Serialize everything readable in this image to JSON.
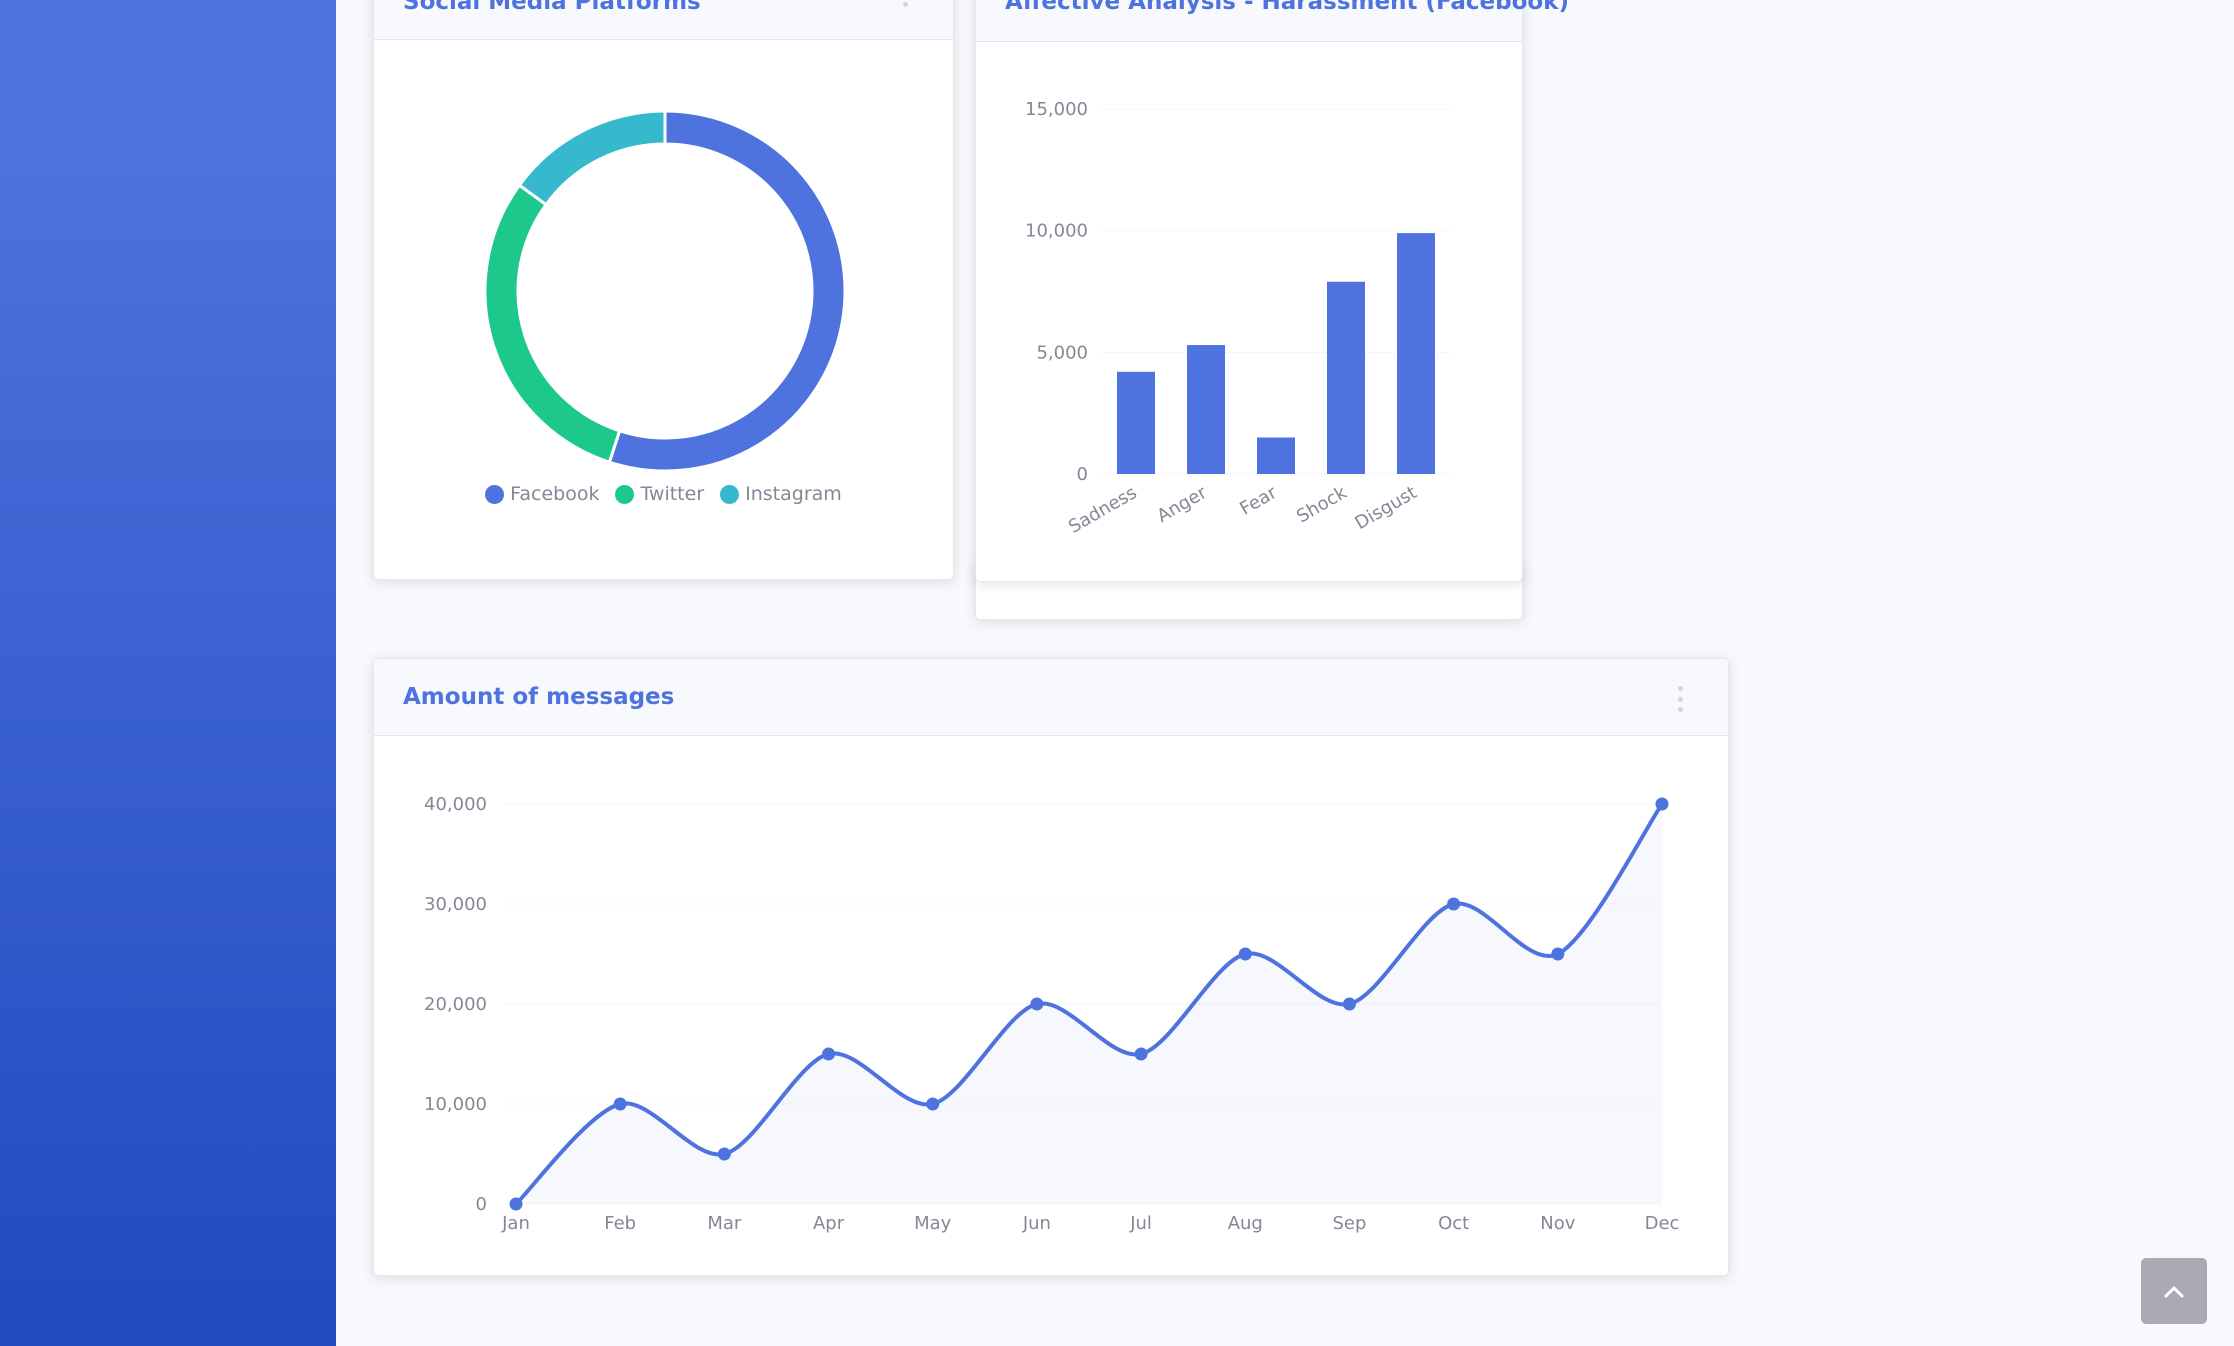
{
  "colors": {
    "primary": "#4e73df",
    "success": "#1cc88a",
    "info": "#36b9cc",
    "sidebar_top": "#4e73df",
    "sidebar_bottom": "#224abe"
  },
  "cards": {
    "platforms": {
      "title": "Social Media Platforms",
      "menu_icon": "ellipsis-vertical-icon"
    },
    "affective": {
      "title": "Affective Analysis - Harassment (Facebook)"
    },
    "messages": {
      "title": "Amount of messages",
      "menu_icon": "ellipsis-vertical-icon"
    }
  },
  "scroll_top_icon": "angle-up-icon",
  "chart_data": [
    {
      "type": "pie",
      "donut": true,
      "categories": [
        "Facebook",
        "Twitter",
        "Instagram"
      ],
      "values": [
        55,
        30,
        15
      ],
      "colors": [
        "#4e73df",
        "#1cc88a",
        "#36b9cc"
      ],
      "legend": "bottom"
    },
    {
      "type": "bar",
      "categories": [
        "Sadness",
        "Anger",
        "Fear",
        "Shock",
        "Disgust"
      ],
      "values": [
        4200,
        5300,
        1500,
        7900,
        9900
      ],
      "ylim": [
        0,
        15000
      ],
      "yticks": [
        "0",
        "5,000",
        "10,000",
        "15,000"
      ],
      "ytick_values": [
        0,
        5000,
        10000,
        15000
      ],
      "grid": true,
      "color": "#4e73df"
    },
    {
      "type": "area",
      "categories": [
        "Jan",
        "Feb",
        "Mar",
        "Apr",
        "May",
        "Jun",
        "Jul",
        "Aug",
        "Sep",
        "Oct",
        "Nov",
        "Dec"
      ],
      "values": [
        0,
        10000,
        5000,
        15000,
        10000,
        20000,
        15000,
        25000,
        20000,
        30000,
        25000,
        40000
      ],
      "ylim": [
        0,
        40000
      ],
      "yticks": [
        "0",
        "10,000",
        "20,000",
        "30,000",
        "40,000"
      ],
      "ytick_values": [
        0,
        10000,
        20000,
        30000,
        40000
      ],
      "grid": true,
      "color": "#4e73df",
      "fill": "rgba(78,115,223,0.05)"
    }
  ]
}
